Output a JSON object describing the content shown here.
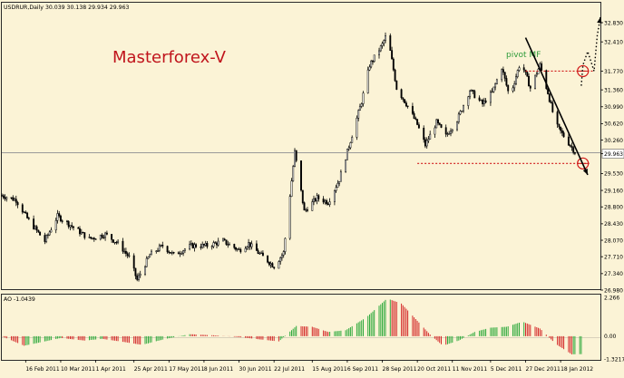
{
  "header": {
    "symbol_line": "USDRUR,Daily  30.039 30.138 29.934 29.963",
    "watermark": "Masterforex-V",
    "pivot_label": "pivot MF"
  },
  "colors": {
    "background": "#fbf3d6",
    "candle": "#000000",
    "watermark": "#c0141c",
    "pivot_label": "#2e9b3a",
    "annotation_red": "#d01818",
    "ao_up": "#2faa3d",
    "ao_down": "#d42a2a",
    "price_tag_bg": "#ffffff"
  },
  "chart_data": [
    {
      "type": "candlestick",
      "title": "USDRUR,Daily",
      "ylim": [
        26.98,
        32.83
      ],
      "yticks": [
        "32.830",
        "32.410",
        "31.770",
        "31.360",
        "30.990",
        "30.620",
        "30.260",
        "29.963",
        "29.530",
        "29.160",
        "28.800",
        "28.430",
        "28.070",
        "27.710",
        "27.340",
        "26.980"
      ],
      "current_price": "29.963",
      "xticks": [
        "16 Feb 2011",
        "10 Mar 2011",
        "1 Apr 2011",
        "25 Apr 2011",
        "17 May 2011",
        "8 Jun 2011",
        "30 Jun 2011",
        "22 Jul 2011",
        "15 Aug 2011",
        "6 Sep 2011",
        "28 Sep 2011",
        "20 Oct 2011",
        "11 Nov 2011",
        "5 Dec 2011",
        "27 Dec 2011",
        "18 Jan 2012"
      ],
      "anchors": [
        [
          "2011-02-01",
          29.05
        ],
        [
          "2011-02-10",
          28.95
        ],
        [
          "2011-02-17",
          28.55
        ],
        [
          "2011-02-28",
          28.05
        ],
        [
          "2011-03-08",
          28.6
        ],
        [
          "2011-03-18",
          28.35
        ],
        [
          "2011-03-28",
          28.1
        ],
        [
          "2011-04-07",
          28.2
        ],
        [
          "2011-04-15",
          28.0
        ],
        [
          "2011-04-22",
          27.7
        ],
        [
          "2011-04-27",
          27.2
        ],
        [
          "2011-05-05",
          27.75
        ],
        [
          "2011-05-13",
          27.95
        ],
        [
          "2011-05-20",
          27.75
        ],
        [
          "2011-05-31",
          27.95
        ],
        [
          "2011-06-10",
          27.95
        ],
        [
          "2011-06-20",
          28.05
        ],
        [
          "2011-06-30",
          27.85
        ],
        [
          "2011-07-06",
          28.0
        ],
        [
          "2011-07-12",
          27.8
        ],
        [
          "2011-07-22",
          27.5
        ],
        [
          "2011-07-28",
          27.8
        ],
        [
          "2011-08-04",
          30.0
        ],
        [
          "2011-08-10",
          28.7
        ],
        [
          "2011-08-18",
          29.0
        ],
        [
          "2011-08-25",
          28.9
        ],
        [
          "2011-09-01",
          29.4
        ],
        [
          "2011-09-08",
          30.25
        ],
        [
          "2011-09-15",
          31.1
        ],
        [
          "2011-09-20",
          31.9
        ],
        [
          "2011-09-28",
          32.35
        ],
        [
          "2011-10-01",
          32.6
        ],
        [
          "2011-10-07",
          31.4
        ],
        [
          "2011-10-14",
          31.0
        ],
        [
          "2011-10-20",
          30.6
        ],
        [
          "2011-10-25",
          30.15
        ],
        [
          "2011-11-01",
          30.65
        ],
        [
          "2011-11-07",
          30.35
        ],
        [
          "2011-11-14",
          30.7
        ],
        [
          "2011-11-22",
          31.35
        ],
        [
          "2011-11-30",
          31.05
        ],
        [
          "2011-12-06",
          31.3
        ],
        [
          "2011-12-12",
          31.85
        ],
        [
          "2011-12-17",
          31.2
        ],
        [
          "2011-12-24",
          32.0
        ],
        [
          "2011-12-30",
          31.4
        ],
        [
          "2012-01-05",
          31.9
        ],
        [
          "2012-01-10",
          31.3
        ],
        [
          "2012-01-15",
          30.6
        ],
        [
          "2012-01-20",
          30.35
        ],
        [
          "2012-01-27",
          30.0
        ]
      ],
      "levels": [
        {
          "value": 29.75,
          "from": "2011-10-20",
          "to": "2012-02-05",
          "color": "#d01818"
        },
        {
          "value": 31.77,
          "from": "2011-12-27",
          "to": "2012-02-08",
          "color": "#d01818"
        }
      ],
      "circles": [
        {
          "date": "2012-02-01",
          "value": 29.75
        },
        {
          "date": "2012-02-01",
          "value": 31.77
        }
      ],
      "projections": [
        {
          "style": "solid",
          "points": [
            [
              "2011-12-27",
              32.5
            ],
            [
              "2012-02-04",
              29.5
            ]
          ]
        },
        {
          "style": "dotted",
          "points": [
            [
              "2012-01-31",
              31.45
            ],
            [
              "2012-02-01",
              31.9
            ],
            [
              "2012-02-04",
              32.2
            ],
            [
              "2012-02-08",
              31.77
            ],
            [
              "2012-02-10",
              32.55
            ],
            [
              "2012-02-12",
              32.95
            ]
          ]
        }
      ]
    },
    {
      "type": "bar",
      "title": "AO -1.0439",
      "ylim": [
        -1.3217,
        2.266
      ],
      "yticks": [
        "2.266",
        "0.00",
        "-1.3217"
      ],
      "value_hint": "Awesome Oscillator histogram, per day",
      "anchors": [
        [
          "2011-02-01",
          0.0
        ],
        [
          "2011-02-15",
          -0.55
        ],
        [
          "2011-02-28",
          -0.3
        ],
        [
          "2011-03-10",
          -0.1
        ],
        [
          "2011-03-25",
          -0.25
        ],
        [
          "2011-04-05",
          -0.15
        ],
        [
          "2011-04-20",
          -0.35
        ],
        [
          "2011-04-30",
          -0.5
        ],
        [
          "2011-05-15",
          -0.15
        ],
        [
          "2011-05-30",
          0.12
        ],
        [
          "2011-06-15",
          0.05
        ],
        [
          "2011-06-30",
          -0.05
        ],
        [
          "2011-07-15",
          -0.2
        ],
        [
          "2011-07-25",
          -0.3
        ],
        [
          "2011-08-05",
          0.6
        ],
        [
          "2011-08-15",
          0.55
        ],
        [
          "2011-08-25",
          0.25
        ],
        [
          "2011-09-05",
          0.35
        ],
        [
          "2011-09-18",
          1.1
        ],
        [
          "2011-10-01",
          2.2
        ],
        [
          "2011-10-10",
          1.9
        ],
        [
          "2011-10-18",
          1.1
        ],
        [
          "2011-10-28",
          0.1
        ],
        [
          "2011-11-05",
          -0.55
        ],
        [
          "2011-11-15",
          -0.25
        ],
        [
          "2011-11-25",
          0.25
        ],
        [
          "2011-12-05",
          0.5
        ],
        [
          "2011-12-15",
          0.55
        ],
        [
          "2011-12-25",
          0.85
        ],
        [
          "2012-01-05",
          0.45
        ],
        [
          "2012-01-15",
          -0.45
        ],
        [
          "2012-01-25",
          -1.05
        ],
        [
          "2012-01-31",
          -1.04
        ]
      ]
    }
  ]
}
